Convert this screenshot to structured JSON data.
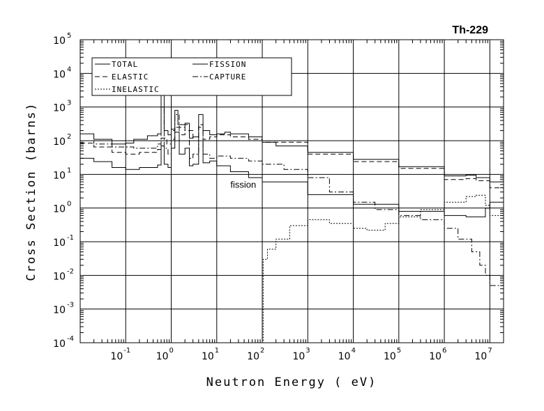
{
  "chart_data": {
    "type": "line",
    "title": "Th-229",
    "xlabel": "Neutron Energy ( eV)",
    "ylabel": "Cross Section (barns)",
    "x_scale": "log",
    "y_scale": "log",
    "xlim": [
      0.01,
      20000000
    ],
    "ylim": [
      0.0001,
      100000
    ],
    "x_ticks": [
      {
        "value": 0.1,
        "base": "10",
        "exp": "-1"
      },
      {
        "value": 1,
        "base": "10",
        "exp": "0"
      },
      {
        "value": 10,
        "base": "10",
        "exp": "1"
      },
      {
        "value": 100,
        "base": "10",
        "exp": "2"
      },
      {
        "value": 1000,
        "base": "10",
        "exp": "3"
      },
      {
        "value": 10000,
        "base": "10",
        "exp": "4"
      },
      {
        "value": 100000,
        "base": "10",
        "exp": "5"
      },
      {
        "value": 1000000,
        "base": "10",
        "exp": "6"
      },
      {
        "value": 10000000,
        "base": "10",
        "exp": "7"
      }
    ],
    "y_ticks": [
      {
        "value": 0.0001,
        "base": "10",
        "exp": "-4"
      },
      {
        "value": 0.001,
        "base": "10",
        "exp": "-3"
      },
      {
        "value": 0.01,
        "base": "10",
        "exp": "-2"
      },
      {
        "value": 0.1,
        "base": "10",
        "exp": "-1"
      },
      {
        "value": 1,
        "base": "10",
        "exp": "0"
      },
      {
        "value": 10,
        "base": "10",
        "exp": "1"
      },
      {
        "value": 100,
        "base": "10",
        "exp": "2"
      },
      {
        "value": 1000,
        "base": "10",
        "exp": "3"
      },
      {
        "value": 10000,
        "base": "10",
        "exp": "4"
      },
      {
        "value": 100000,
        "base": "10",
        "exp": "5"
      }
    ],
    "grid": true,
    "legend_position": "top-left",
    "annotations": [
      {
        "text": "fission",
        "x": 20,
        "y": 4
      }
    ],
    "series": [
      {
        "name": "TOTAL",
        "style": "solid",
        "points": [
          [
            0.01,
            160
          ],
          [
            0.02,
            110
          ],
          [
            0.05,
            80
          ],
          [
            0.1,
            85
          ],
          [
            0.15,
            110
          ],
          [
            0.3,
            140
          ],
          [
            0.5,
            160
          ],
          [
            0.6,
            2500
          ],
          [
            0.7,
            200
          ],
          [
            0.85,
            150
          ],
          [
            1.0,
            220
          ],
          [
            1.2,
            800
          ],
          [
            1.4,
            300
          ],
          [
            2.0,
            330
          ],
          [
            2.5,
            120
          ],
          [
            3.0,
            130
          ],
          [
            4.0,
            600
          ],
          [
            5.0,
            200
          ],
          [
            7.0,
            150
          ],
          [
            10.0,
            160
          ],
          [
            15.0,
            180
          ],
          [
            20.0,
            160
          ],
          [
            50.0,
            130
          ],
          [
            100.0,
            90
          ],
          [
            200.0,
            70
          ],
          [
            1000.0,
            45
          ],
          [
            10000.0,
            28
          ],
          [
            100000.0,
            17
          ],
          [
            1000000.0,
            9
          ],
          [
            3000000.0,
            9.5
          ],
          [
            5000000.0,
            8
          ],
          [
            10000000.0,
            6
          ],
          [
            20000000.0,
            6
          ]
        ]
      },
      {
        "name": "ELASTIC",
        "style": "dashed",
        "points": [
          [
            0.01,
            85
          ],
          [
            0.02,
            65
          ],
          [
            0.05,
            45
          ],
          [
            0.1,
            40
          ],
          [
            0.2,
            45
          ],
          [
            0.5,
            55
          ],
          [
            0.6,
            120
          ],
          [
            0.8,
            80
          ],
          [
            1.0,
            110
          ],
          [
            1.2,
            250
          ],
          [
            2.0,
            200
          ],
          [
            3.0,
            100
          ],
          [
            4.0,
            300
          ],
          [
            5.0,
            110
          ],
          [
            7.0,
            130
          ],
          [
            10.0,
            150
          ],
          [
            20.0,
            130
          ],
          [
            50.0,
            110
          ],
          [
            100.0,
            90
          ],
          [
            1000.0,
            40
          ],
          [
            10000.0,
            24
          ],
          [
            100000.0,
            15
          ],
          [
            1000000.0,
            7
          ],
          [
            3000000.0,
            7.5
          ],
          [
            5000000.0,
            6.5
          ],
          [
            10000000.0,
            4
          ],
          [
            20000000.0,
            3
          ]
        ]
      },
      {
        "name": "FISSION",
        "style": "solid",
        "points": [
          [
            0.01,
            30
          ],
          [
            0.02,
            24
          ],
          [
            0.05,
            16
          ],
          [
            0.1,
            14
          ],
          [
            0.2,
            16
          ],
          [
            0.5,
            19
          ],
          [
            0.6,
            70
          ],
          [
            0.7,
            20
          ],
          [
            0.85,
            16
          ],
          [
            1.0,
            60
          ],
          [
            1.2,
            180
          ],
          [
            1.5,
            40
          ],
          [
            2.0,
            60
          ],
          [
            2.5,
            18
          ],
          [
            3.0,
            20
          ],
          [
            4.0,
            100
          ],
          [
            5.0,
            22
          ],
          [
            7.0,
            25
          ],
          [
            10.0,
            18
          ],
          [
            20.0,
            12
          ],
          [
            50.0,
            8
          ],
          [
            100.0,
            6
          ],
          [
            1000.0,
            2.5
          ],
          [
            10000.0,
            1.3
          ],
          [
            100000.0,
            0.8
          ],
          [
            1000000.0,
            0.6
          ],
          [
            3000000.0,
            0.55
          ],
          [
            5000000.0,
            0.55
          ],
          [
            8000000.0,
            1.0
          ],
          [
            10000000.0,
            1.5
          ],
          [
            20000000.0,
            2.0
          ]
        ]
      },
      {
        "name": "CAPTURE",
        "style": "dash-dot",
        "points": [
          [
            0.01,
            100
          ],
          [
            0.02,
            80
          ],
          [
            0.05,
            65
          ],
          [
            0.1,
            65
          ],
          [
            0.15,
            60
          ],
          [
            0.3,
            60
          ],
          [
            0.5,
            80
          ],
          [
            0.6,
            1000
          ],
          [
            0.7,
            60
          ],
          [
            0.85,
            40
          ],
          [
            1.0,
            200
          ],
          [
            1.2,
            600
          ],
          [
            1.5,
            150
          ],
          [
            2.0,
            300
          ],
          [
            2.5,
            30
          ],
          [
            3.0,
            40
          ],
          [
            4.0,
            250
          ],
          [
            5.0,
            40
          ],
          [
            7.0,
            30
          ],
          [
            10.0,
            35
          ],
          [
            20.0,
            30
          ],
          [
            50.0,
            25
          ],
          [
            100.0,
            20
          ],
          [
            300.0,
            14
          ],
          [
            1000.0,
            8
          ],
          [
            3000.0,
            3
          ],
          [
            10000.0,
            1.5
          ],
          [
            30000.0,
            0.9
          ],
          [
            100000.0,
            0.6
          ],
          [
            300000.0,
            0.45
          ],
          [
            1000000.0,
            0.25
          ],
          [
            2000000.0,
            0.12
          ],
          [
            4000000.0,
            0.05
          ],
          [
            6000000.0,
            0.02
          ],
          [
            8000000.0,
            0.01
          ],
          [
            10000000.0,
            0.005
          ],
          [
            20000000.0,
            0.003
          ]
        ]
      },
      {
        "name": "INELASTIC",
        "style": "dotted",
        "points": [
          [
            100.0,
            0.0001
          ],
          [
            105.0,
            0.03
          ],
          [
            130.0,
            0.06
          ],
          [
            200.0,
            0.12
          ],
          [
            400.0,
            0.3
          ],
          [
            1000.0,
            0.45
          ],
          [
            3000.0,
            0.35
          ],
          [
            10000.0,
            0.25
          ],
          [
            20000.0,
            0.22
          ],
          [
            50000.0,
            0.35
          ],
          [
            100000.0,
            0.55
          ],
          [
            300000.0,
            0.9
          ],
          [
            1000000.0,
            1.5
          ],
          [
            3000000.0,
            2.2
          ],
          [
            5000000.0,
            2.4
          ],
          [
            8000000.0,
            1.2
          ],
          [
            10000000.0,
            0.6
          ],
          [
            20000000.0,
            1.0
          ]
        ]
      }
    ]
  }
}
